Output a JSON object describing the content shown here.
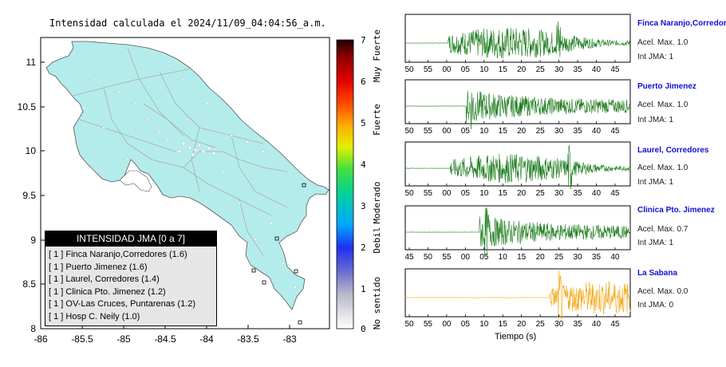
{
  "map": {
    "title": "Intensidad calculada el 2024/11/09_04:04:56_a.m.",
    "lat_ticks": [
      "11",
      "10.5",
      "10",
      "9.5",
      "9",
      "8.5",
      "8"
    ],
    "lon_ticks": [
      "-86",
      "-85.5",
      "-85",
      "-84.5",
      "-84",
      "-83.5",
      "-83"
    ],
    "land_color": "#b4eceb",
    "colorbar": {
      "ticks": [
        "7",
        "6",
        "5",
        "4",
        "3",
        "2",
        "1",
        "0"
      ],
      "labels": [
        "Muy Fuerte",
        "Fuerte",
        "Moderado",
        "Debil",
        "No sentido"
      ]
    },
    "legend": {
      "title": "INTENSIDAD JMA [0 a 7]",
      "rows": [
        "[ 1 ]  Finca Naranjo,Corredores (1.6)",
        "[ 1 ]  Puerto Jimenez (1.6)",
        "[ 1 ]  Laurel, Corredores (1.4)",
        "[ 1 ]  Clinica Pto. Jimenez (1.2)",
        "[ 1 ]  OV-Las Cruces, Puntarenas (1.2)",
        "[ 1 ]  Hosp C. Neily (1.0)"
      ]
    }
  },
  "waveforms": {
    "x_label": "Tiempo (s)",
    "stations": [
      {
        "name": "Finca Naranjo,Corredor",
        "accel": "Acel. Max. 1.0",
        "jma": "Int JMA: 1",
        "color": "#1a7a1a",
        "ticks": [
          "50",
          "55",
          "00",
          "05",
          "10",
          "15",
          "20",
          "25",
          "30",
          "35",
          "40",
          "45"
        ]
      },
      {
        "name": "Puerto Jimenez",
        "accel": "Acel. Max. 1.0",
        "jma": "Int JMA: 1",
        "color": "#1a7a1a",
        "ticks": [
          "50",
          "55",
          "00",
          "05",
          "10",
          "15",
          "20",
          "25",
          "30",
          "35",
          "40",
          "45"
        ]
      },
      {
        "name": "Laurel, Corredores",
        "accel": "Acel. Max. 1.0",
        "jma": "Int JMA: 1",
        "color": "#1a7a1a",
        "ticks": [
          "50",
          "55",
          "00",
          "05",
          "10",
          "15",
          "20",
          "25",
          "30",
          "35",
          "40",
          "45"
        ]
      },
      {
        "name": "Clinica Pto. Jimenez",
        "accel": "Acel. Max. 0.7",
        "jma": "Int JMA: 1",
        "color": "#1a7a1a",
        "ticks": [
          "45",
          "50",
          "55",
          "00",
          "05",
          "10",
          "15",
          "20",
          "25",
          "30",
          "35",
          "40"
        ]
      },
      {
        "name": "La Sabana",
        "accel": "Acel. Max. 0.0",
        "jma": "Int JMA: 0",
        "color": "#f0a818",
        "ticks": [
          "50",
          "55",
          "00",
          "05",
          "10",
          "15",
          "20",
          "25",
          "30",
          "35",
          "40",
          "45"
        ]
      }
    ]
  }
}
